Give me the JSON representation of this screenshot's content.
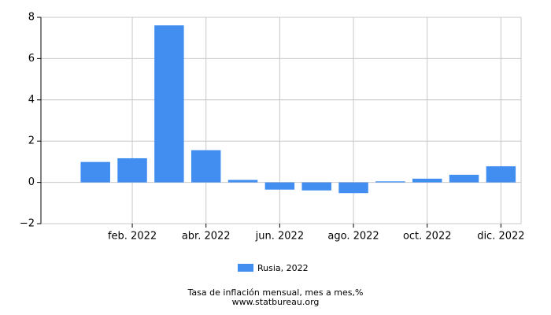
{
  "chart_data": {
    "type": "bar",
    "subtitle": "Tasa de inflación mensual, mes a mes,%",
    "source": "www.statbureau.org",
    "categories": [
      null,
      "feb. 2022",
      null,
      "abr. 2022",
      null,
      "jun. 2022",
      null,
      "ago. 2022",
      null,
      "oct. 2022",
      null,
      "dic. 2022"
    ],
    "series": [
      {
        "name": "Rusia, 2022",
        "color": "#428ef0",
        "values": [
          0.99,
          1.17,
          7.61,
          1.56,
          0.12,
          -0.35,
          -0.39,
          -0.52,
          0.05,
          0.18,
          0.37,
          0.78
        ]
      }
    ],
    "ylim": [
      -2,
      8
    ],
    "yticks": [
      {
        "value": -2,
        "label": "−2"
      },
      0,
      2,
      4,
      6,
      8
    ],
    "grid": true,
    "legend": "bottom"
  }
}
